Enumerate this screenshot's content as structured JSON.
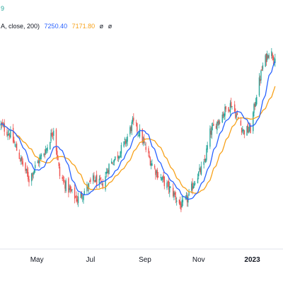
{
  "legend": {
    "line1_value": "9",
    "line2_prefix": "A, close, 200)",
    "ma_blue_value": "7250.40",
    "ma_orange_value": "7171.80",
    "extra1": "ø",
    "extra2": "ø"
  },
  "colors": {
    "up": "#26a69a",
    "down": "#ef5350",
    "ma_fast": "#2962ff",
    "ma_slow": "#f7a21b",
    "axis": "#d1d4dc",
    "background": "#ffffff"
  },
  "chart_data": {
    "type": "line",
    "subtype": "candlestick",
    "x_ticks": [
      "May",
      "Jul",
      "Sep",
      "Nov",
      "2023"
    ],
    "x_ticks_bold": [
      "2023"
    ],
    "y_range": [
      6500,
      7700
    ],
    "grid": false,
    "series": [
      {
        "kind": "candles",
        "anchors_date_close": [
          [
            "2022-03-20",
            7200
          ],
          [
            "2022-04-01",
            7140
          ],
          [
            "2022-04-12",
            7000
          ],
          [
            "2022-04-22",
            6880
          ],
          [
            "2022-05-02",
            6980
          ],
          [
            "2022-05-12",
            7060
          ],
          [
            "2022-05-20",
            7180
          ],
          [
            "2022-05-27",
            6900
          ],
          [
            "2022-06-06",
            6820
          ],
          [
            "2022-06-16",
            6760
          ],
          [
            "2022-06-24",
            6810
          ],
          [
            "2022-07-05",
            6880
          ],
          [
            "2022-07-14",
            6840
          ],
          [
            "2022-07-22",
            6960
          ],
          [
            "2022-08-01",
            7020
          ],
          [
            "2022-08-10",
            7100
          ],
          [
            "2022-08-18",
            7210
          ],
          [
            "2022-08-26",
            7150
          ],
          [
            "2022-09-06",
            7000
          ],
          [
            "2022-09-14",
            6920
          ],
          [
            "2022-09-23",
            6860
          ],
          [
            "2022-10-03",
            6800
          ],
          [
            "2022-10-12",
            6720
          ],
          [
            "2022-10-20",
            6770
          ],
          [
            "2022-10-28",
            6880
          ],
          [
            "2022-11-07",
            6960
          ],
          [
            "2022-11-14",
            7150
          ],
          [
            "2022-11-23",
            7220
          ],
          [
            "2022-12-01",
            7280
          ],
          [
            "2022-12-08",
            7320
          ],
          [
            "2022-12-15",
            7240
          ],
          [
            "2022-12-22",
            7160
          ],
          [
            "2022-12-30",
            7170
          ],
          [
            "2023-01-06",
            7380
          ],
          [
            "2023-01-13",
            7540
          ],
          [
            "2023-01-20",
            7630
          ],
          [
            "2023-01-27",
            7590
          ]
        ]
      },
      {
        "kind": "moving-average",
        "name": "MA fast",
        "color": "#2962ff",
        "last_value": 7250.4
      },
      {
        "kind": "moving-average",
        "name": "MA slow",
        "color": "#f7a21b",
        "last_value": 7171.8
      }
    ]
  }
}
